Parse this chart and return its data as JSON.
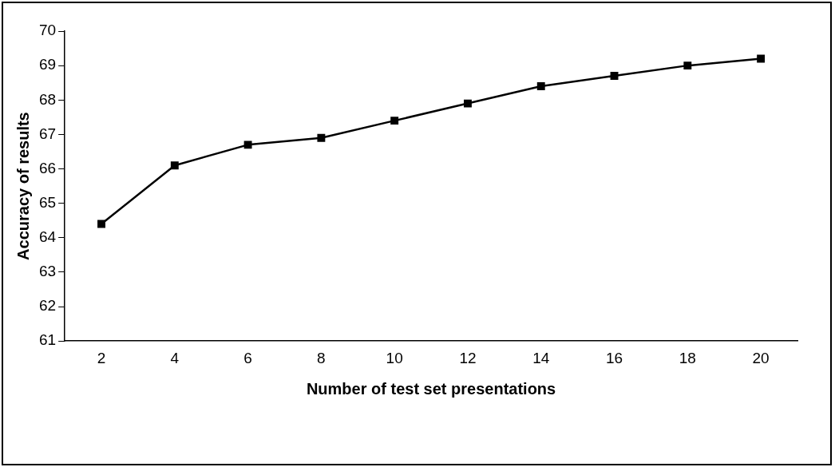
{
  "chart_data": {
    "type": "line",
    "xlabel": "Number of test set presentations",
    "ylabel": "Accuracy of results",
    "categories": [
      "2",
      "4",
      "6",
      "8",
      "10",
      "12",
      "14",
      "16",
      "18",
      "20"
    ],
    "series": [
      {
        "color": "#000000",
        "values": [
          64.4,
          66.1,
          66.7,
          66.9,
          67.4,
          67.9,
          68.4,
          68.7,
          69.0,
          69.2
        ]
      }
    ],
    "ylim": [
      61,
      70
    ],
    "yticks": [
      61,
      62,
      63,
      64,
      65,
      66,
      67,
      68,
      69,
      70
    ],
    "grid": false,
    "legend": false,
    "marker": "square",
    "line_style": "solid"
  }
}
